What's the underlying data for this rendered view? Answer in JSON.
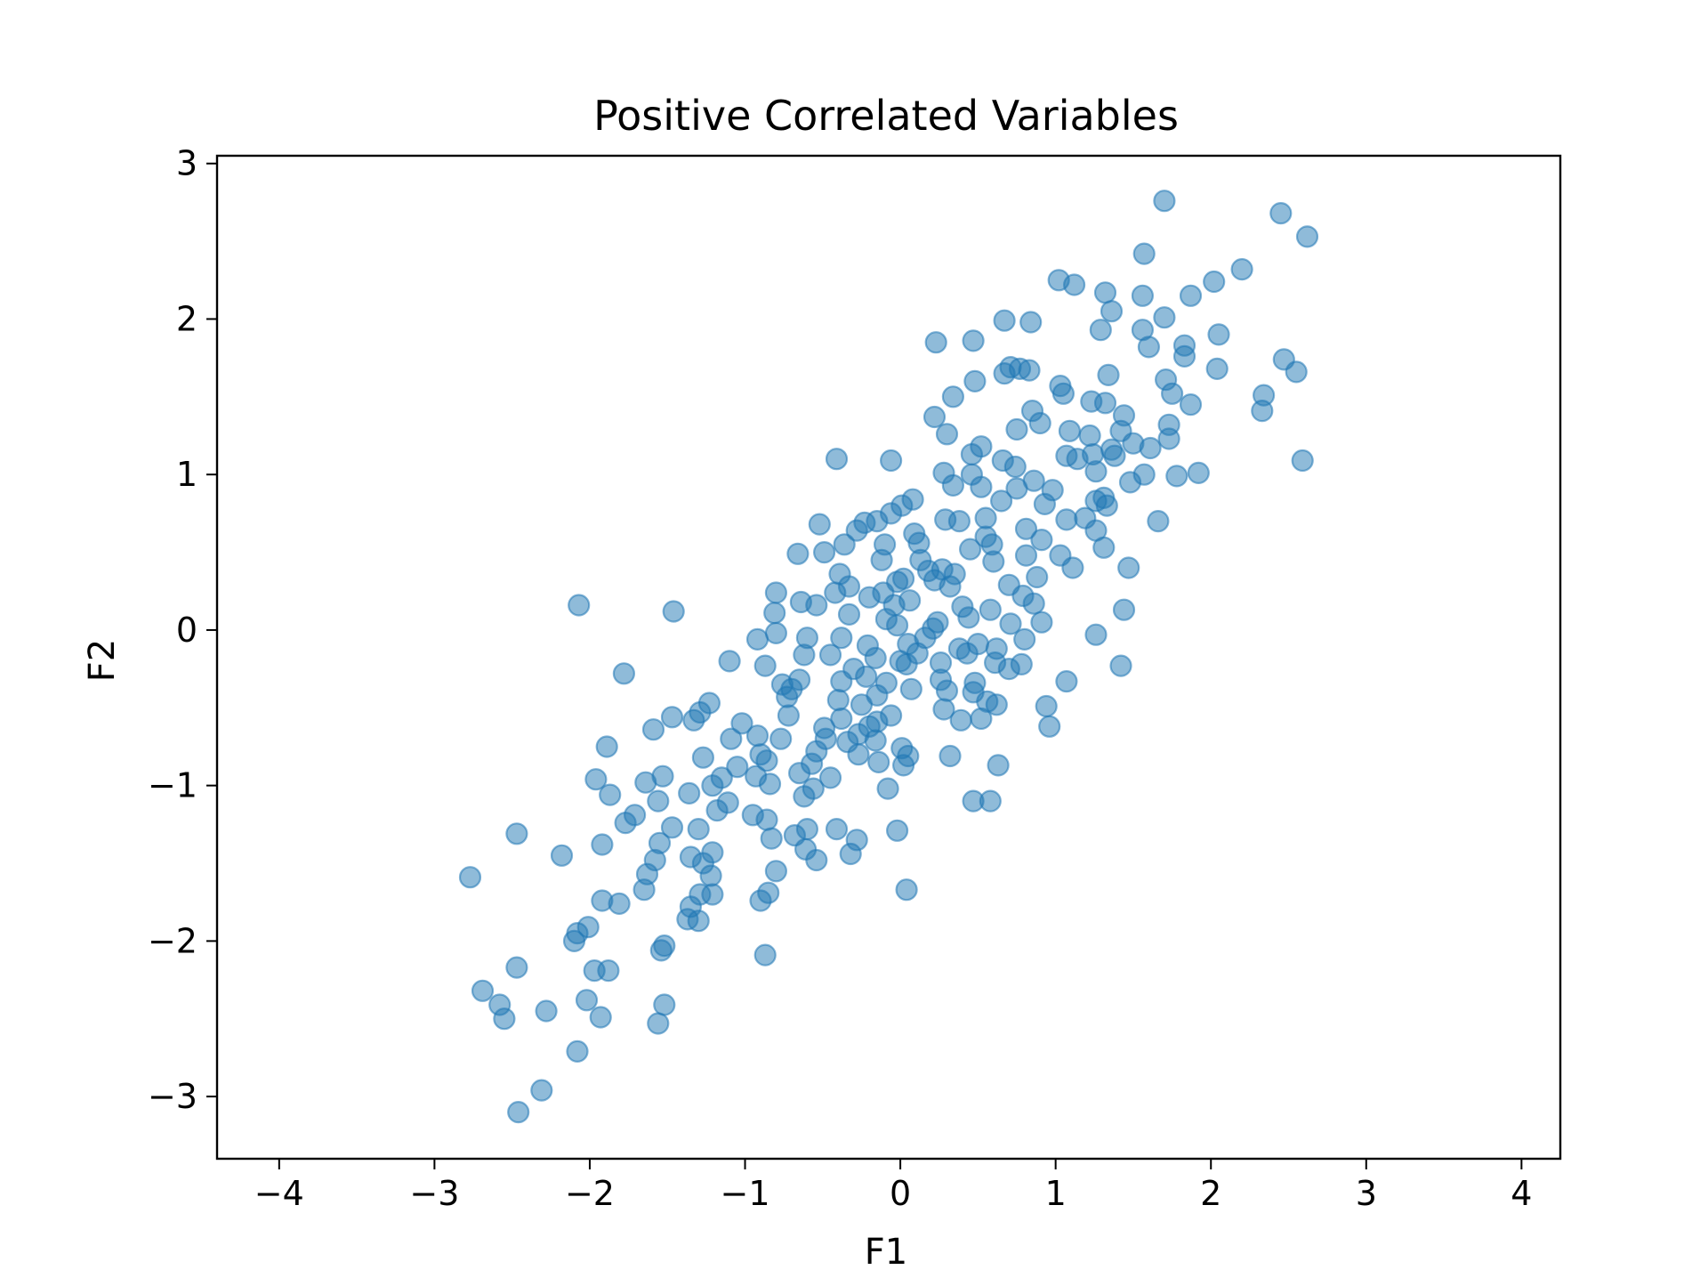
{
  "chart_data": {
    "type": "scatter",
    "title": "Positive Correlated Variables",
    "xlabel": "F1",
    "ylabel": "F2",
    "xlim": [
      -4.4,
      4.25
    ],
    "ylim": [
      -3.4,
      3.05
    ],
    "xticks": [
      -4,
      -3,
      -2,
      -1,
      0,
      1,
      2,
      3,
      4
    ],
    "yticks": [
      -3,
      -2,
      -1,
      0,
      1,
      2,
      3
    ],
    "xtick_labels": [
      "−4",
      "−3",
      "−2",
      "−1",
      "0",
      "1",
      "2",
      "3",
      "4"
    ],
    "ytick_labels": [
      "−3",
      "−2",
      "−1",
      "0",
      "1",
      "2",
      "3"
    ],
    "grid": false,
    "legend": false,
    "marker_color": "#1f77b4",
    "marker_alpha": 0.5,
    "series": [
      {
        "points": [
          [
            1.7,
            2.76
          ],
          [
            2.45,
            2.68
          ],
          [
            2.62,
            2.53
          ],
          [
            1.57,
            2.42
          ],
          [
            2.2,
            2.32
          ],
          [
            1.02,
            2.25
          ],
          [
            1.12,
            2.22
          ],
          [
            2.02,
            2.24
          ],
          [
            1.32,
            2.17
          ],
          [
            1.56,
            2.15
          ],
          [
            1.87,
            2.15
          ],
          [
            1.36,
            2.05
          ],
          [
            1.7,
            2.01
          ],
          [
            0.67,
            1.99
          ],
          [
            0.84,
            1.98
          ],
          [
            1.29,
            1.93
          ],
          [
            1.56,
            1.93
          ],
          [
            2.05,
            1.9
          ],
          [
            0.23,
            1.85
          ],
          [
            0.47,
            1.86
          ],
          [
            1.83,
            1.83
          ],
          [
            1.83,
            1.76
          ],
          [
            1.6,
            1.82
          ],
          [
            2.47,
            1.74
          ],
          [
            2.04,
            1.68
          ],
          [
            2.55,
            1.66
          ],
          [
            0.71,
            1.69
          ],
          [
            0.77,
            1.68
          ],
          [
            0.83,
            1.67
          ],
          [
            0.67,
            1.65
          ],
          [
            1.34,
            1.64
          ],
          [
            1.71,
            1.61
          ],
          [
            0.48,
            1.6
          ],
          [
            1.03,
            1.57
          ],
          [
            1.05,
            1.52
          ],
          [
            0.34,
            1.5
          ],
          [
            1.75,
            1.52
          ],
          [
            2.34,
            1.51
          ],
          [
            1.23,
            1.47
          ],
          [
            1.32,
            1.46
          ],
          [
            1.87,
            1.45
          ],
          [
            2.33,
            1.41
          ],
          [
            0.85,
            1.41
          ],
          [
            1.44,
            1.38
          ],
          [
            0.22,
            1.37
          ],
          [
            0.9,
            1.33
          ],
          [
            1.73,
            1.32
          ],
          [
            0.75,
            1.29
          ],
          [
            1.42,
            1.28
          ],
          [
            1.09,
            1.28
          ],
          [
            0.3,
            1.26
          ],
          [
            1.22,
            1.25
          ],
          [
            1.73,
            1.23
          ],
          [
            1.5,
            1.2
          ],
          [
            0.52,
            1.18
          ],
          [
            1.36,
            1.16
          ],
          [
            0.46,
            1.13
          ],
          [
            1.07,
            1.12
          ],
          [
            1.24,
            1.13
          ],
          [
            1.61,
            1.17
          ],
          [
            2.59,
            1.09
          ],
          [
            -0.41,
            1.1
          ],
          [
            -0.06,
            1.09
          ],
          [
            0.66,
            1.09
          ],
          [
            0.74,
            1.05
          ],
          [
            1.26,
            1.02
          ],
          [
            0.28,
            1.01
          ],
          [
            1.57,
            1.0
          ],
          [
            1.92,
            1.01
          ],
          [
            1.78,
            0.99
          ],
          [
            0.46,
            1.0
          ],
          [
            0.86,
            0.96
          ],
          [
            1.48,
            0.95
          ],
          [
            0.34,
            0.93
          ],
          [
            0.75,
            0.91
          ],
          [
            1.31,
            0.85
          ],
          [
            1.26,
            0.83
          ],
          [
            0.65,
            0.83
          ],
          [
            0.08,
            0.84
          ],
          [
            0.93,
            0.81
          ],
          [
            1.33,
            0.8
          ],
          [
            0.01,
            0.8
          ],
          [
            -0.06,
            0.75
          ],
          [
            0.29,
            0.71
          ],
          [
            0.38,
            0.7
          ],
          [
            0.55,
            0.72
          ],
          [
            1.07,
            0.71
          ],
          [
            1.66,
            0.7
          ],
          [
            -0.52,
            0.68
          ],
          [
            -0.23,
            0.69
          ],
          [
            -0.15,
            0.7
          ],
          [
            -0.28,
            0.64
          ],
          [
            0.09,
            0.62
          ],
          [
            0.81,
            0.65
          ],
          [
            0.55,
            0.6
          ],
          [
            1.26,
            0.64
          ],
          [
            0.12,
            0.56
          ],
          [
            -0.36,
            0.55
          ],
          [
            -0.49,
            0.5
          ],
          [
            -0.66,
            0.49
          ],
          [
            0.45,
            0.52
          ],
          [
            0.81,
            0.48
          ],
          [
            1.03,
            0.48
          ],
          [
            1.31,
            0.53
          ],
          [
            -0.12,
            0.45
          ],
          [
            0.6,
            0.44
          ],
          [
            0.27,
            0.39
          ],
          [
            0.35,
            0.36
          ],
          [
            -0.39,
            0.36
          ],
          [
            0.02,
            0.33
          ],
          [
            -0.02,
            0.31
          ],
          [
            -0.33,
            0.28
          ],
          [
            0.22,
            0.32
          ],
          [
            1.11,
            0.4
          ],
          [
            1.47,
            0.4
          ],
          [
            -0.11,
            0.24
          ],
          [
            -0.2,
            0.21
          ],
          [
            -0.42,
            0.24
          ],
          [
            -0.8,
            0.24
          ],
          [
            0.06,
            0.19
          ],
          [
            0.4,
            0.15
          ],
          [
            0.58,
            0.13
          ],
          [
            0.86,
            0.17
          ],
          [
            -0.81,
            0.11
          ],
          [
            -0.64,
            0.18
          ],
          [
            -0.54,
            0.16
          ],
          [
            -2.07,
            0.16
          ],
          [
            -1.46,
            0.12
          ],
          [
            1.44,
            0.13
          ],
          [
            0.91,
            0.05
          ],
          [
            0.71,
            0.04
          ],
          [
            -0.09,
            0.07
          ],
          [
            0.21,
            0.01
          ],
          [
            -0.8,
            -0.02
          ],
          [
            -0.92,
            -0.06
          ],
          [
            -0.38,
            -0.05
          ],
          [
            0.05,
            -0.09
          ],
          [
            0.5,
            -0.09
          ],
          [
            0.8,
            -0.06
          ],
          [
            1.26,
            -0.03
          ],
          [
            -0.62,
            -0.16
          ],
          [
            -0.45,
            -0.16
          ],
          [
            -0.16,
            -0.18
          ],
          [
            0.04,
            -0.22
          ],
          [
            0.26,
            -0.21
          ],
          [
            0.43,
            -0.15
          ],
          [
            0.61,
            -0.21
          ],
          [
            0.78,
            -0.22
          ],
          [
            1.42,
            -0.23
          ],
          [
            -1.1,
            -0.2
          ],
          [
            -0.87,
            -0.23
          ],
          [
            -0.3,
            -0.25
          ],
          [
            -1.78,
            -0.28
          ],
          [
            -0.22,
            -0.3
          ],
          [
            -0.09,
            -0.34
          ],
          [
            0.26,
            -0.32
          ],
          [
            0.48,
            -0.34
          ],
          [
            1.07,
            -0.33
          ],
          [
            -0.76,
            -0.35
          ],
          [
            -0.65,
            -0.32
          ],
          [
            -0.38,
            -0.33
          ],
          [
            0.07,
            -0.38
          ],
          [
            -0.15,
            -0.42
          ],
          [
            0.3,
            -0.39
          ],
          [
            0.47,
            -0.4
          ],
          [
            -0.73,
            -0.43
          ],
          [
            -0.4,
            -0.45
          ],
          [
            0.56,
            -0.46
          ],
          [
            0.62,
            -0.48
          ],
          [
            -1.23,
            -0.47
          ],
          [
            0.94,
            -0.49
          ],
          [
            -0.06,
            -0.55
          ],
          [
            0.28,
            -0.51
          ],
          [
            -1.29,
            -0.53
          ],
          [
            -1.33,
            -0.58
          ],
          [
            -1.47,
            -0.56
          ],
          [
            -0.72,
            -0.55
          ],
          [
            -0.38,
            -0.57
          ],
          [
            -0.15,
            -0.59
          ],
          [
            0.39,
            -0.58
          ],
          [
            0.52,
            -0.57
          ],
          [
            0.96,
            -0.62
          ],
          [
            -1.59,
            -0.64
          ],
          [
            -0.49,
            -0.63
          ],
          [
            -0.27,
            -0.67
          ],
          [
            -0.92,
            -0.68
          ],
          [
            -1.09,
            -0.7
          ],
          [
            -0.77,
            -0.7
          ],
          [
            -0.34,
            -0.72
          ],
          [
            -0.16,
            -0.71
          ],
          [
            0.01,
            -0.76
          ],
          [
            -1.89,
            -0.75
          ],
          [
            -0.54,
            -0.78
          ],
          [
            -0.27,
            -0.8
          ],
          [
            0.05,
            -0.81
          ],
          [
            0.32,
            -0.81
          ],
          [
            -0.86,
            -0.84
          ],
          [
            -1.27,
            -0.82
          ],
          [
            -0.57,
            -0.86
          ],
          [
            -0.14,
            -0.85
          ],
          [
            0.02,
            -0.87
          ],
          [
            0.63,
            -0.87
          ],
          [
            -1.05,
            -0.88
          ],
          [
            -0.65,
            -0.92
          ],
          [
            -0.93,
            -0.94
          ],
          [
            -1.53,
            -0.94
          ],
          [
            -1.96,
            -0.96
          ],
          [
            -1.64,
            -0.98
          ],
          [
            -0.84,
            -0.99
          ],
          [
            -1.21,
            -1.0
          ],
          [
            -0.56,
            -1.02
          ],
          [
            -0.08,
            -1.02
          ],
          [
            -1.87,
            -1.06
          ],
          [
            -1.36,
            -1.05
          ],
          [
            -0.62,
            -1.07
          ],
          [
            -1.11,
            -1.11
          ],
          [
            -1.56,
            -1.1
          ],
          [
            0.47,
            -1.1
          ],
          [
            0.58,
            -1.1
          ],
          [
            -1.18,
            -1.16
          ],
          [
            -0.95,
            -1.19
          ],
          [
            -1.71,
            -1.19
          ],
          [
            -1.77,
            -1.24
          ],
          [
            -1.3,
            -1.28
          ],
          [
            -0.86,
            -1.22
          ],
          [
            -0.41,
            -1.28
          ],
          [
            -0.02,
            -1.29
          ],
          [
            -0.6,
            -1.28
          ],
          [
            -2.47,
            -1.31
          ],
          [
            -1.47,
            -1.27
          ],
          [
            -0.83,
            -1.34
          ],
          [
            -0.68,
            -1.32
          ],
          [
            -0.28,
            -1.35
          ],
          [
            -1.55,
            -1.37
          ],
          [
            -1.92,
            -1.38
          ],
          [
            -0.61,
            -1.41
          ],
          [
            -0.32,
            -1.44
          ],
          [
            -2.18,
            -1.45
          ],
          [
            -1.35,
            -1.46
          ],
          [
            -1.21,
            -1.43
          ],
          [
            -0.54,
            -1.48
          ],
          [
            -1.58,
            -1.48
          ],
          [
            -1.27,
            -1.5
          ],
          [
            -1.63,
            -1.57
          ],
          [
            -0.8,
            -1.55
          ],
          [
            -1.22,
            -1.58
          ],
          [
            -2.77,
            -1.59
          ],
          [
            -1.65,
            -1.67
          ],
          [
            -1.29,
            -1.7
          ],
          [
            -0.85,
            -1.69
          ],
          [
            0.04,
            -1.67
          ],
          [
            -1.21,
            -1.7
          ],
          [
            -1.92,
            -1.74
          ],
          [
            -0.9,
            -1.74
          ],
          [
            -1.81,
            -1.76
          ],
          [
            -1.35,
            -1.78
          ],
          [
            -1.37,
            -1.86
          ],
          [
            -1.3,
            -1.87
          ],
          [
            -2.01,
            -1.91
          ],
          [
            -2.08,
            -1.95
          ],
          [
            -2.1,
            -2.0
          ],
          [
            -1.52,
            -2.03
          ],
          [
            -1.54,
            -2.06
          ],
          [
            -0.87,
            -2.09
          ],
          [
            -2.47,
            -2.17
          ],
          [
            -1.97,
            -2.19
          ],
          [
            -1.88,
            -2.19
          ],
          [
            -2.69,
            -2.32
          ],
          [
            -2.02,
            -2.38
          ],
          [
            -2.58,
            -2.41
          ],
          [
            -1.52,
            -2.41
          ],
          [
            -2.28,
            -2.45
          ],
          [
            -1.93,
            -2.49
          ],
          [
            -2.55,
            -2.5
          ],
          [
            -1.56,
            -2.53
          ],
          [
            -2.08,
            -2.71
          ],
          [
            -2.31,
            -2.96
          ],
          [
            -2.46,
            -3.1
          ],
          [
            0.13,
            0.45
          ],
          [
            0.32,
            0.28
          ],
          [
            -0.04,
            0.16
          ],
          [
            0.16,
            -0.05
          ],
          [
            0.38,
            -0.12
          ],
          [
            0.7,
            0.29
          ],
          [
            0.91,
            0.58
          ],
          [
            0.18,
            0.38
          ],
          [
            -0.21,
            -0.1
          ],
          [
            -0.02,
            0.03
          ],
          [
            0.59,
            0.55
          ],
          [
            0.98,
            0.9
          ],
          [
            1.14,
            1.1
          ],
          [
            0.24,
            0.05
          ],
          [
            -0.48,
            -0.7
          ],
          [
            -0.7,
            -0.38
          ],
          [
            -1.02,
            -0.6
          ],
          [
            -0.25,
            -0.48
          ],
          [
            0.11,
            -0.15
          ],
          [
            0.44,
            0.08
          ],
          [
            0.79,
            0.22
          ],
          [
            1.19,
            0.72
          ],
          [
            1.38,
            1.12
          ],
          [
            -0.6,
            -0.05
          ],
          [
            -0.33,
            0.1
          ],
          [
            0.62,
            -0.12
          ],
          [
            0.88,
            0.34
          ],
          [
            -0.1,
            0.55
          ],
          [
            -0.2,
            -0.62
          ],
          [
            -0.9,
            -0.8
          ],
          [
            -1.15,
            -0.95
          ],
          [
            -0.45,
            -0.95
          ],
          [
            0.7,
            -0.25
          ],
          [
            0.52,
            0.92
          ],
          [
            0.0,
            -0.2
          ]
        ]
      }
    ]
  }
}
